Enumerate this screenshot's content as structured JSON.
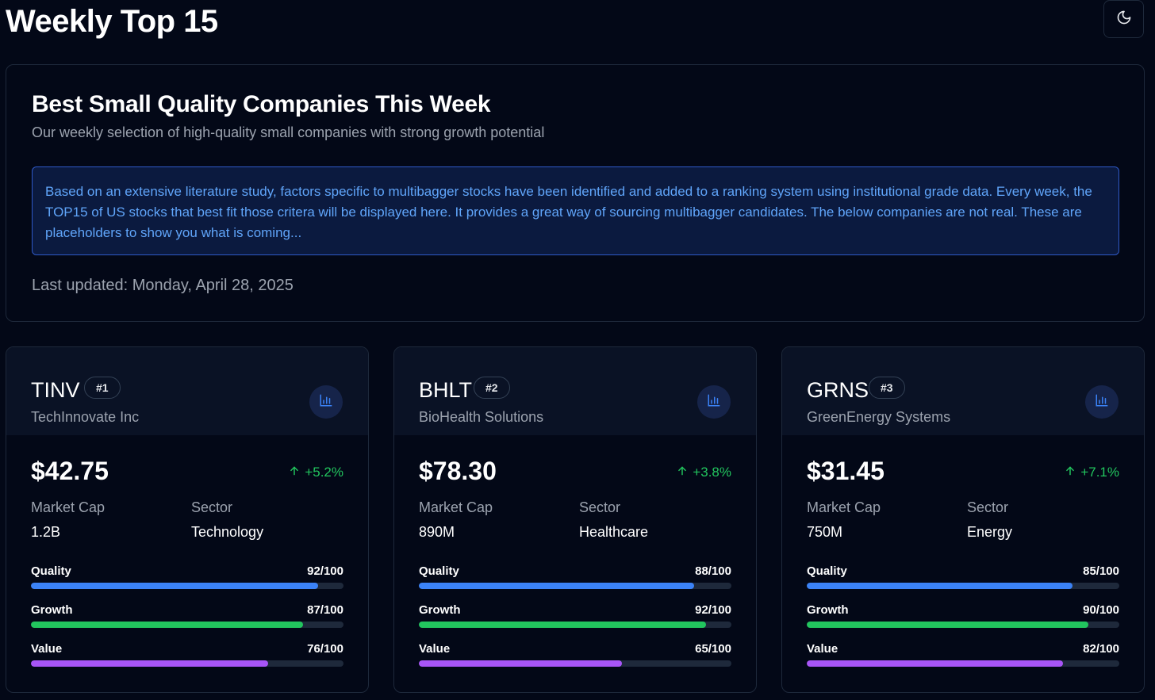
{
  "header": {
    "title": "Weekly Top 15",
    "theme_icon": "moon-icon"
  },
  "hero": {
    "title": "Best Small Quality Companies This Week",
    "subtitle": "Our weekly selection of high-quality small companies with strong growth potential",
    "notice": "Based on an extensive literature study, factors specific to multibagger stocks have been identified and added to a ranking system using institutional grade data. Every week, the TOP15 of US stocks that best fit those critera will be displayed here. It provides a great way of sourcing multibagger candidates. The below companies are not real. These are placeholders to show you what is coming...",
    "last_updated": "Last updated: Monday, April 28, 2025"
  },
  "labels": {
    "market_cap": "Market Cap",
    "sector": "Sector",
    "quality": "Quality",
    "growth": "Growth",
    "value": "Value"
  },
  "colors": {
    "quality": "#3b82f6",
    "growth": "#22c55e",
    "value": "#a855f7",
    "positive": "#22c55e"
  },
  "cards": [
    {
      "ticker": "TINV",
      "rank": "#1",
      "company": "TechInnovate Inc",
      "price": "$42.75",
      "change": "+5.2%",
      "market_cap": "1.2B",
      "sector": "Technology",
      "quality": "92/100",
      "growth": "87/100",
      "value": "76/100",
      "quality_score": 92,
      "growth_score": 87,
      "value_score": 76
    },
    {
      "ticker": "BHLT",
      "rank": "#2",
      "company": "BioHealth Solutions",
      "price": "$78.30",
      "change": "+3.8%",
      "market_cap": "890M",
      "sector": "Healthcare",
      "quality": "88/100",
      "growth": "92/100",
      "value": "65/100",
      "quality_score": 88,
      "growth_score": 92,
      "value_score": 65
    },
    {
      "ticker": "GRNS",
      "rank": "#3",
      "company": "GreenEnergy Systems",
      "price": "$31.45",
      "change": "+7.1%",
      "market_cap": "750M",
      "sector": "Energy",
      "quality": "85/100",
      "growth": "90/100",
      "value": "82/100",
      "quality_score": 85,
      "growth_score": 90,
      "value_score": 82
    }
  ]
}
